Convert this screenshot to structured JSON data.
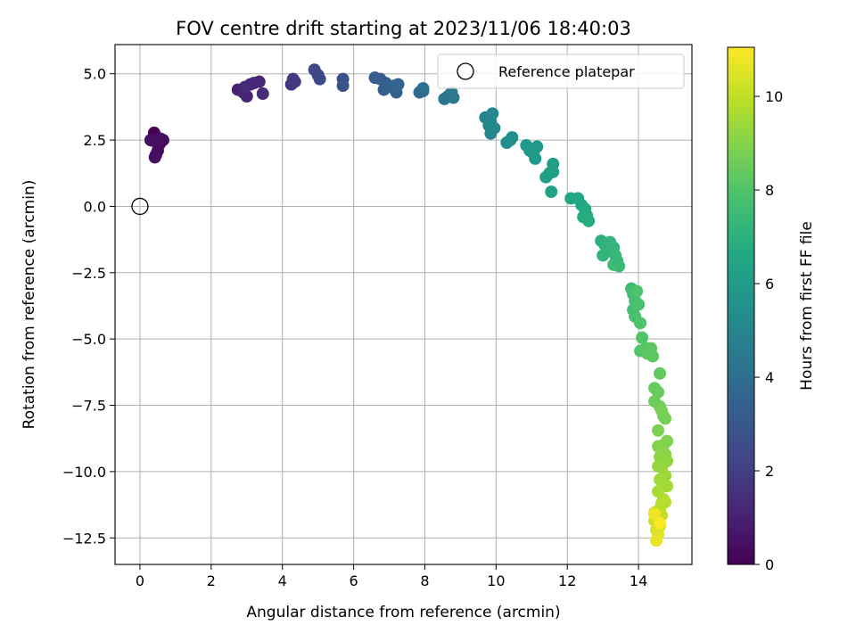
{
  "chart_data": {
    "type": "scatter",
    "title": "FOV centre drift starting at 2023/11/06 18:40:03",
    "xlabel": "Angular distance from reference (arcmin)",
    "ylabel": "Rotation from reference (arcmin)",
    "xlim": [
      -0.7,
      15.5
    ],
    "ylim": [
      -13.5,
      6.1
    ],
    "xticks": [
      0,
      2,
      4,
      6,
      8,
      10,
      12,
      14
    ],
    "xtick_labels": [
      "0",
      "2",
      "4",
      "6",
      "8",
      "10",
      "12",
      "14"
    ],
    "yticks": [
      5.0,
      2.5,
      0.0,
      -2.5,
      -5.0,
      -7.5,
      -10.0,
      -12.5
    ],
    "ytick_labels": [
      "5.0",
      "2.5",
      "0.0",
      "−2.5",
      "−5.0",
      "−7.5",
      "−10.0",
      "−12.5"
    ],
    "grid": true,
    "legend": {
      "placement": "top-right",
      "entries": [
        {
          "label": "Reference platepar",
          "marker": "open-circle"
        }
      ]
    },
    "reference_point": {
      "x": 0.0,
      "y": 0.0
    },
    "colorbar": {
      "label": "Hours from first FF file",
      "colormap": "viridis",
      "range": [
        0,
        11.05
      ],
      "ticks": [
        0,
        2,
        4,
        6,
        8,
        10
      ],
      "tick_labels": [
        "0",
        "2",
        "4",
        "6",
        "8",
        "10"
      ]
    },
    "points": [
      [
        0.4,
        2.77,
        0.05
      ],
      [
        0.35,
        2.48,
        0.1
      ],
      [
        0.48,
        2.6,
        0.15
      ],
      [
        0.55,
        2.35,
        0.2
      ],
      [
        0.65,
        2.5,
        0.25
      ],
      [
        0.45,
        1.95,
        0.3
      ],
      [
        0.5,
        2.1,
        0.35
      ],
      [
        0.42,
        1.85,
        0.4
      ],
      [
        0.58,
        2.55,
        0.45
      ],
      [
        0.3,
        2.5,
        0.5
      ],
      [
        2.75,
        4.4,
        1.0
      ],
      [
        2.9,
        4.3,
        1.05
      ],
      [
        3.0,
        4.15,
        1.1
      ],
      [
        3.1,
        4.6,
        1.15
      ],
      [
        3.2,
        4.65,
        1.2
      ],
      [
        3.35,
        4.7,
        1.25
      ],
      [
        3.45,
        4.25,
        1.3
      ],
      [
        2.95,
        4.5,
        1.35
      ],
      [
        4.25,
        4.6,
        1.7
      ],
      [
        4.35,
        4.7,
        1.75
      ],
      [
        4.3,
        4.8,
        1.8
      ],
      [
        4.9,
        5.15,
        2.3
      ],
      [
        5.0,
        4.95,
        2.35
      ],
      [
        5.05,
        4.8,
        2.4
      ],
      [
        5.7,
        4.8,
        2.8
      ],
      [
        5.7,
        4.55,
        2.85
      ],
      [
        6.6,
        4.85,
        3.2
      ],
      [
        6.75,
        4.8,
        3.25
      ],
      [
        6.9,
        4.65,
        3.3
      ],
      [
        6.85,
        4.4,
        3.35
      ],
      [
        7.05,
        4.5,
        3.4
      ],
      [
        7.15,
        4.55,
        3.45
      ],
      [
        7.2,
        4.3,
        3.5
      ],
      [
        7.25,
        4.6,
        3.55
      ],
      [
        7.85,
        4.3,
        3.9
      ],
      [
        7.95,
        4.35,
        3.95
      ],
      [
        7.95,
        4.45,
        4.0
      ],
      [
        8.55,
        4.05,
        4.3
      ],
      [
        8.65,
        4.15,
        4.35
      ],
      [
        8.75,
        4.3,
        4.4
      ],
      [
        8.8,
        4.1,
        4.45
      ],
      [
        9.7,
        3.35,
        4.9
      ],
      [
        9.8,
        3.05,
        4.95
      ],
      [
        9.85,
        2.75,
        5.0
      ],
      [
        9.9,
        3.5,
        5.05
      ],
      [
        9.95,
        2.95,
        5.1
      ],
      [
        9.85,
        3.2,
        5.15
      ],
      [
        10.3,
        2.4,
        5.4
      ],
      [
        10.4,
        2.5,
        5.45
      ],
      [
        10.45,
        2.6,
        5.5
      ],
      [
        10.85,
        2.3,
        5.8
      ],
      [
        10.95,
        2.1,
        5.85
      ],
      [
        11.1,
        1.8,
        5.9
      ],
      [
        11.15,
        2.25,
        5.95
      ],
      [
        11.05,
        2.0,
        6.0
      ],
      [
        11.4,
        1.1,
        6.1
      ],
      [
        11.5,
        1.25,
        6.15
      ],
      [
        11.6,
        1.6,
        6.2
      ],
      [
        11.6,
        1.3,
        6.25
      ],
      [
        11.55,
        0.55,
        6.3
      ],
      [
        12.1,
        0.3,
        6.5
      ],
      [
        12.3,
        0.3,
        6.55
      ],
      [
        12.4,
        0.05,
        6.6
      ],
      [
        12.5,
        -0.1,
        6.65
      ],
      [
        12.45,
        -0.4,
        6.7
      ],
      [
        12.6,
        -0.55,
        6.75
      ],
      [
        12.55,
        -0.35,
        6.8
      ],
      [
        12.95,
        -1.3,
        7.0
      ],
      [
        13.05,
        -1.45,
        7.05
      ],
      [
        13.1,
        -1.7,
        7.1
      ],
      [
        13.0,
        -1.85,
        7.15
      ],
      [
        13.2,
        -1.35,
        7.2
      ],
      [
        13.3,
        -1.55,
        7.25
      ],
      [
        13.35,
        -1.85,
        7.3
      ],
      [
        13.4,
        -2.05,
        7.35
      ],
      [
        13.45,
        -2.25,
        7.4
      ],
      [
        13.3,
        -2.2,
        7.45
      ],
      [
        13.8,
        -3.1,
        7.6
      ],
      [
        13.85,
        -3.3,
        7.65
      ],
      [
        13.9,
        -3.55,
        7.7
      ],
      [
        13.85,
        -3.9,
        7.75
      ],
      [
        13.9,
        -4.15,
        7.8
      ],
      [
        14.0,
        -3.7,
        7.85
      ],
      [
        13.95,
        -3.2,
        7.9
      ],
      [
        14.05,
        -4.4,
        7.95
      ],
      [
        14.1,
        -4.95,
        8.0
      ],
      [
        14.05,
        -5.45,
        8.05
      ],
      [
        14.2,
        -5.35,
        8.1
      ],
      [
        14.25,
        -5.55,
        8.15
      ],
      [
        14.35,
        -5.35,
        8.2
      ],
      [
        14.4,
        -5.65,
        8.25
      ],
      [
        14.6,
        -6.3,
        8.35
      ],
      [
        14.45,
        -6.85,
        8.45
      ],
      [
        14.55,
        -7.0,
        8.5
      ],
      [
        14.45,
        -7.35,
        8.55
      ],
      [
        14.6,
        -7.55,
        8.6
      ],
      [
        14.7,
        -7.9,
        8.65
      ],
      [
        14.75,
        -8.0,
        8.7
      ],
      [
        14.65,
        -7.7,
        8.75
      ],
      [
        14.55,
        -8.45,
        8.85
      ],
      [
        14.8,
        -8.85,
        8.9
      ],
      [
        14.7,
        -9.0,
        8.95
      ],
      [
        14.55,
        -9.05,
        9.0
      ],
      [
        14.75,
        -9.35,
        9.1
      ],
      [
        14.6,
        -9.45,
        9.15
      ],
      [
        14.8,
        -9.6,
        9.2
      ],
      [
        14.65,
        -9.85,
        9.25
      ],
      [
        14.55,
        -9.8,
        9.3
      ],
      [
        14.75,
        -10.15,
        9.4
      ],
      [
        14.6,
        -10.3,
        9.45
      ],
      [
        14.7,
        -10.55,
        9.5
      ],
      [
        14.8,
        -10.55,
        9.55
      ],
      [
        14.55,
        -10.75,
        9.6
      ],
      [
        14.7,
        -11.05,
        9.7
      ],
      [
        14.65,
        -11.2,
        9.75
      ],
      [
        14.75,
        -11.15,
        9.8
      ],
      [
        14.6,
        -11.4,
        9.85
      ],
      [
        14.45,
        -11.55,
        9.9
      ],
      [
        14.55,
        -11.8,
        9.95
      ],
      [
        14.65,
        -11.65,
        10.0
      ],
      [
        14.45,
        -11.85,
        10.1
      ],
      [
        14.6,
        -12.05,
        10.2
      ],
      [
        14.5,
        -12.2,
        10.35
      ],
      [
        14.55,
        -12.35,
        10.5
      ],
      [
        14.5,
        -12.6,
        10.7
      ],
      [
        14.45,
        -11.6,
        10.85
      ],
      [
        14.6,
        -11.95,
        11.0
      ]
    ]
  }
}
